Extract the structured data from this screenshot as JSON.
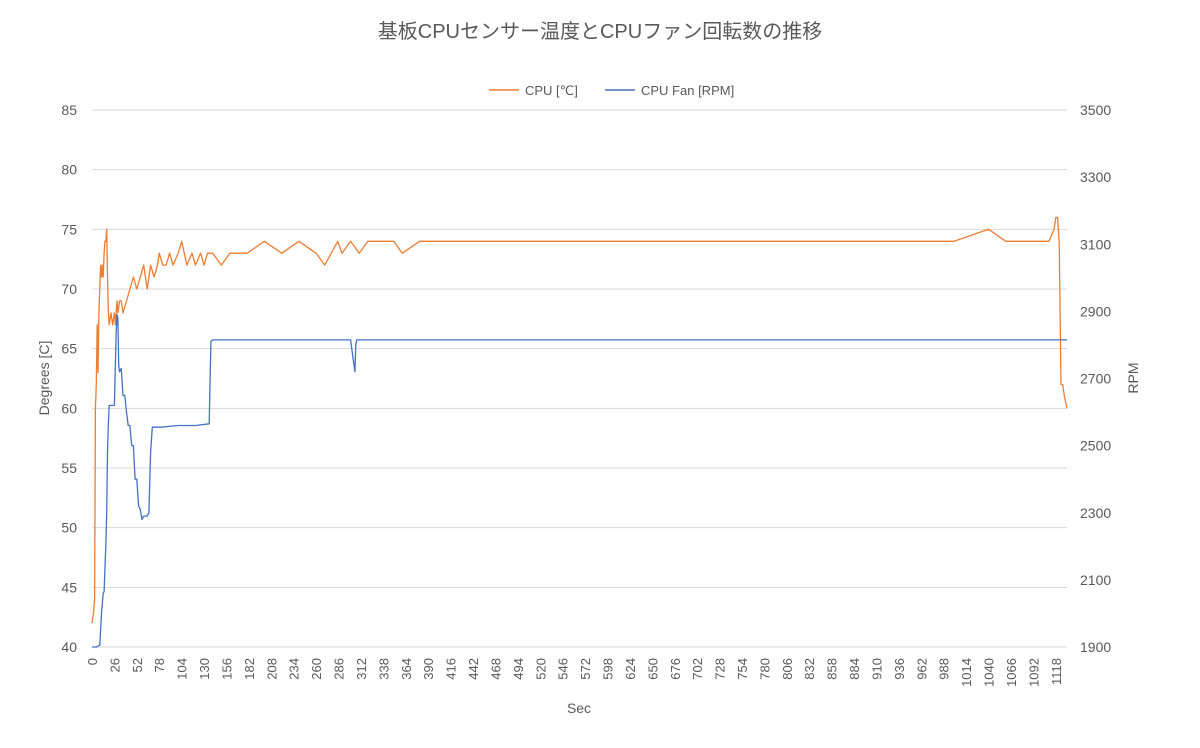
{
  "chart_data": {
    "type": "line",
    "title": "基板CPUセンサー温度とCPUファン回転数の推移",
    "xlabel": "Sec",
    "ylabel_left": "Degrees [C]",
    "ylabel_right": "RPM",
    "ylim_left": [
      40,
      85
    ],
    "ylim_right": [
      1900,
      3500
    ],
    "yticks_left": [
      40,
      45,
      50,
      55,
      60,
      65,
      70,
      75,
      80,
      85
    ],
    "yticks_right": [
      1900,
      2100,
      2300,
      2500,
      2700,
      2900,
      3100,
      3300,
      3500
    ],
    "x_range": [
      0,
      1131
    ],
    "x_ticks": [
      0,
      26,
      52,
      78,
      104,
      130,
      156,
      182,
      208,
      234,
      260,
      286,
      312,
      338,
      364,
      390,
      416,
      442,
      468,
      494,
      520,
      546,
      572,
      598,
      624,
      650,
      676,
      702,
      728,
      754,
      780,
      806,
      832,
      858,
      884,
      910,
      936,
      962,
      988,
      1014,
      1040,
      1066,
      1092,
      1118
    ],
    "grid": "horizontal",
    "legend_position": "top",
    "colors": {
      "cpu": "#ED7D31",
      "fan": "#4472C4",
      "grid": "#D9D9D9",
      "text": "#595959"
    },
    "series": [
      {
        "name": "CPU [℃]",
        "axis": "left",
        "x": [
          0,
          2,
          3,
          4,
          5,
          6,
          7,
          8,
          9,
          10,
          11,
          12,
          13,
          14,
          15,
          16,
          17,
          18,
          19,
          20,
          22,
          24,
          26,
          27,
          28,
          29,
          30,
          32,
          34,
          36,
          40,
          44,
          48,
          52,
          56,
          60,
          64,
          66,
          68,
          72,
          76,
          78,
          82,
          86,
          90,
          94,
          100,
          104,
          110,
          116,
          120,
          126,
          130,
          134,
          140,
          150,
          160,
          180,
          200,
          220,
          240,
          260,
          270,
          285,
          290,
          300,
          310,
          320,
          330,
          350,
          360,
          380,
          400,
          440,
          480,
          500,
          550,
          600,
          700,
          800,
          900,
          1000,
          1040,
          1060,
          1100,
          1110,
          1116,
          1118,
          1120,
          1122,
          1124,
          1126,
          1128,
          1131
        ],
        "values": [
          42,
          43,
          44,
          60,
          62,
          67,
          63,
          68,
          70,
          72,
          71,
          72,
          71,
          73,
          74,
          74,
          75,
          71,
          68,
          67,
          68,
          67,
          68,
          67,
          68,
          69,
          68,
          69,
          69,
          68,
          69,
          70,
          71,
          70,
          71,
          72,
          70,
          71,
          72,
          71,
          72,
          73,
          72,
          72,
          73,
          72,
          73,
          74,
          72,
          73,
          72,
          73,
          72,
          73,
          73,
          72,
          73,
          73,
          74,
          73,
          74,
          73,
          72,
          74,
          73,
          74,
          73,
          74,
          74,
          74,
          73,
          74,
          74,
          74,
          74,
          74,
          74,
          74,
          74,
          74,
          74,
          74,
          75,
          74,
          74,
          74,
          75,
          76,
          76,
          74,
          62,
          62,
          61,
          60
        ]
      },
      {
        "name": "CPU Fan [RPM]",
        "axis": "right",
        "x": [
          0,
          5,
          9,
          11,
          13,
          14,
          15,
          16,
          17,
          18,
          19,
          20,
          23,
          26,
          28,
          29,
          30,
          31,
          32,
          34,
          36,
          38,
          40,
          42,
          44,
          46,
          48,
          50,
          52,
          54,
          56,
          58,
          60,
          62,
          64,
          66,
          68,
          70,
          80,
          100,
          120,
          136,
          137,
          138,
          140,
          160,
          200,
          260,
          300,
          305,
          306,
          307,
          310,
          320,
          400,
          500,
          600,
          700,
          800,
          900,
          1000,
          1100,
          1131
        ],
        "values": [
          1900,
          1900,
          1905,
          2000,
          2060,
          2065,
          2130,
          2200,
          2300,
          2480,
          2570,
          2620,
          2620,
          2620,
          2830,
          2890,
          2880,
          2740,
          2720,
          2730,
          2650,
          2650,
          2600,
          2560,
          2560,
          2500,
          2500,
          2400,
          2400,
          2320,
          2310,
          2280,
          2290,
          2290,
          2290,
          2300,
          2480,
          2555,
          2555,
          2560,
          2560,
          2565,
          2700,
          2812,
          2815,
          2815,
          2815,
          2815,
          2815,
          2720,
          2800,
          2815,
          2815,
          2815,
          2815,
          2815,
          2815,
          2815,
          2815,
          2815,
          2815,
          2815,
          2815
        ]
      }
    ]
  }
}
